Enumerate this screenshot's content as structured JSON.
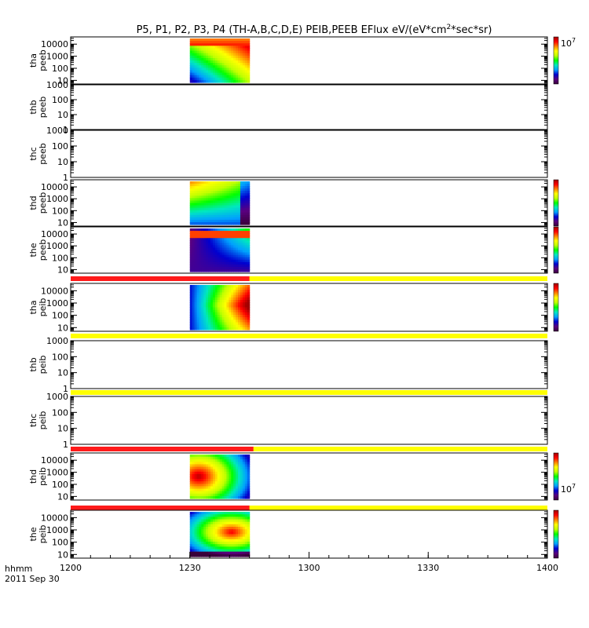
{
  "chart_data": {
    "type": "heatmap",
    "title": "P5, P1, P2, P3, P4 (TH-A,B,C,D,E) PEIB,PEEB EFlux eV/(eV*cm",
    "title_sup": "2",
    "title_tail": "*sec*sr)",
    "x_axis_label": "hhmm",
    "date_label": "2011 Sep 30",
    "x_ticks": [
      "1200",
      "1230",
      "1300",
      "1330",
      "1400"
    ],
    "x_range_minutes": [
      0,
      120
    ],
    "panels": [
      {
        "probe": "tha",
        "type": "peeb",
        "y_ticks": [
          "10000",
          "1000",
          "100",
          "10"
        ],
        "y_max_exp": 4.6,
        "y_min_exp": 0.7,
        "has_data": true,
        "data_range_min": [
          30,
          45
        ],
        "has_colorbar": true,
        "colorbar_label": "10",
        "colorbar_label_exp": "7",
        "colorbar_label_pos": "top",
        "mode_bar": false
      },
      {
        "probe": "thb",
        "type": "peeb",
        "y_ticks": [
          "1000",
          "100",
          "10",
          "1"
        ],
        "y_max_exp": 3.0,
        "y_min_exp": 0.0,
        "has_data": false,
        "has_colorbar": false,
        "mode_bar": false
      },
      {
        "probe": "thc",
        "type": "peeb",
        "y_ticks": [
          "1000",
          "100",
          "10",
          "1"
        ],
        "y_max_exp": 3.0,
        "y_min_exp": 0.0,
        "has_data": false,
        "has_colorbar": false,
        "mode_bar": false
      },
      {
        "probe": "thd",
        "type": "peeb",
        "y_ticks": [
          "10000",
          "1000",
          "100",
          "10"
        ],
        "y_max_exp": 4.6,
        "y_min_exp": 0.7,
        "has_data": true,
        "data_range_min": [
          30,
          45
        ],
        "has_colorbar": true,
        "mode_bar": false
      },
      {
        "probe": "the",
        "type": "peeb",
        "y_ticks": [
          "10000",
          "1000",
          "100",
          "10"
        ],
        "y_max_exp": 4.6,
        "y_min_exp": 0.7,
        "has_data": true,
        "data_range_min": [
          30,
          45
        ],
        "has_colorbar": true,
        "mode_bar": false
      },
      {
        "probe": "tha",
        "type": "peib",
        "y_ticks": [
          "10000",
          "1000",
          "100",
          "10"
        ],
        "y_max_exp": 4.6,
        "y_min_exp": 0.7,
        "has_data": true,
        "data_range_min": [
          30,
          45
        ],
        "has_colorbar": true,
        "mode_bar": true,
        "mode_red_until_min": 45
      },
      {
        "probe": "thb",
        "type": "peib",
        "y_ticks": [
          "1000",
          "100",
          "10",
          "1"
        ],
        "y_max_exp": 3.0,
        "y_min_exp": 0.0,
        "has_data": false,
        "has_colorbar": false,
        "mode_bar": true,
        "mode_red_until_min": 0
      },
      {
        "probe": "thc",
        "type": "peib",
        "y_ticks": [
          "1000",
          "100",
          "10",
          "1"
        ],
        "y_max_exp": 3.0,
        "y_min_exp": 0.0,
        "has_data": false,
        "has_colorbar": false,
        "mode_bar": true,
        "mode_red_until_min": 0
      },
      {
        "probe": "thd",
        "type": "peib",
        "y_ticks": [
          "10000",
          "1000",
          "100",
          "10"
        ],
        "y_max_exp": 4.6,
        "y_min_exp": 0.7,
        "has_data": true,
        "data_range_min": [
          30,
          45
        ],
        "has_colorbar": true,
        "colorbar_label": "10",
        "colorbar_label_exp": "7",
        "colorbar_label_pos": "bottom",
        "mode_bar": true,
        "mode_red_until_min": 46
      },
      {
        "probe": "the",
        "type": "peib",
        "y_ticks": [
          "10000",
          "1000",
          "100",
          "10"
        ],
        "y_max_exp": 4.6,
        "y_min_exp": 0.7,
        "has_data": true,
        "data_range_min": [
          30,
          45
        ],
        "has_colorbar": true,
        "mode_bar": true,
        "mode_red_until_min": 45
      }
    ]
  },
  "colors": {
    "mode_red": "#ff1a1a",
    "mode_yellow": "#ffff00",
    "colorbar_stops": [
      "#3a003a",
      "#5a0080",
      "#0000d0",
      "#00a0ff",
      "#00e8c0",
      "#00ff00",
      "#c0ff00",
      "#ffff00",
      "#ff8000",
      "#ff0000",
      "#a00000"
    ]
  }
}
